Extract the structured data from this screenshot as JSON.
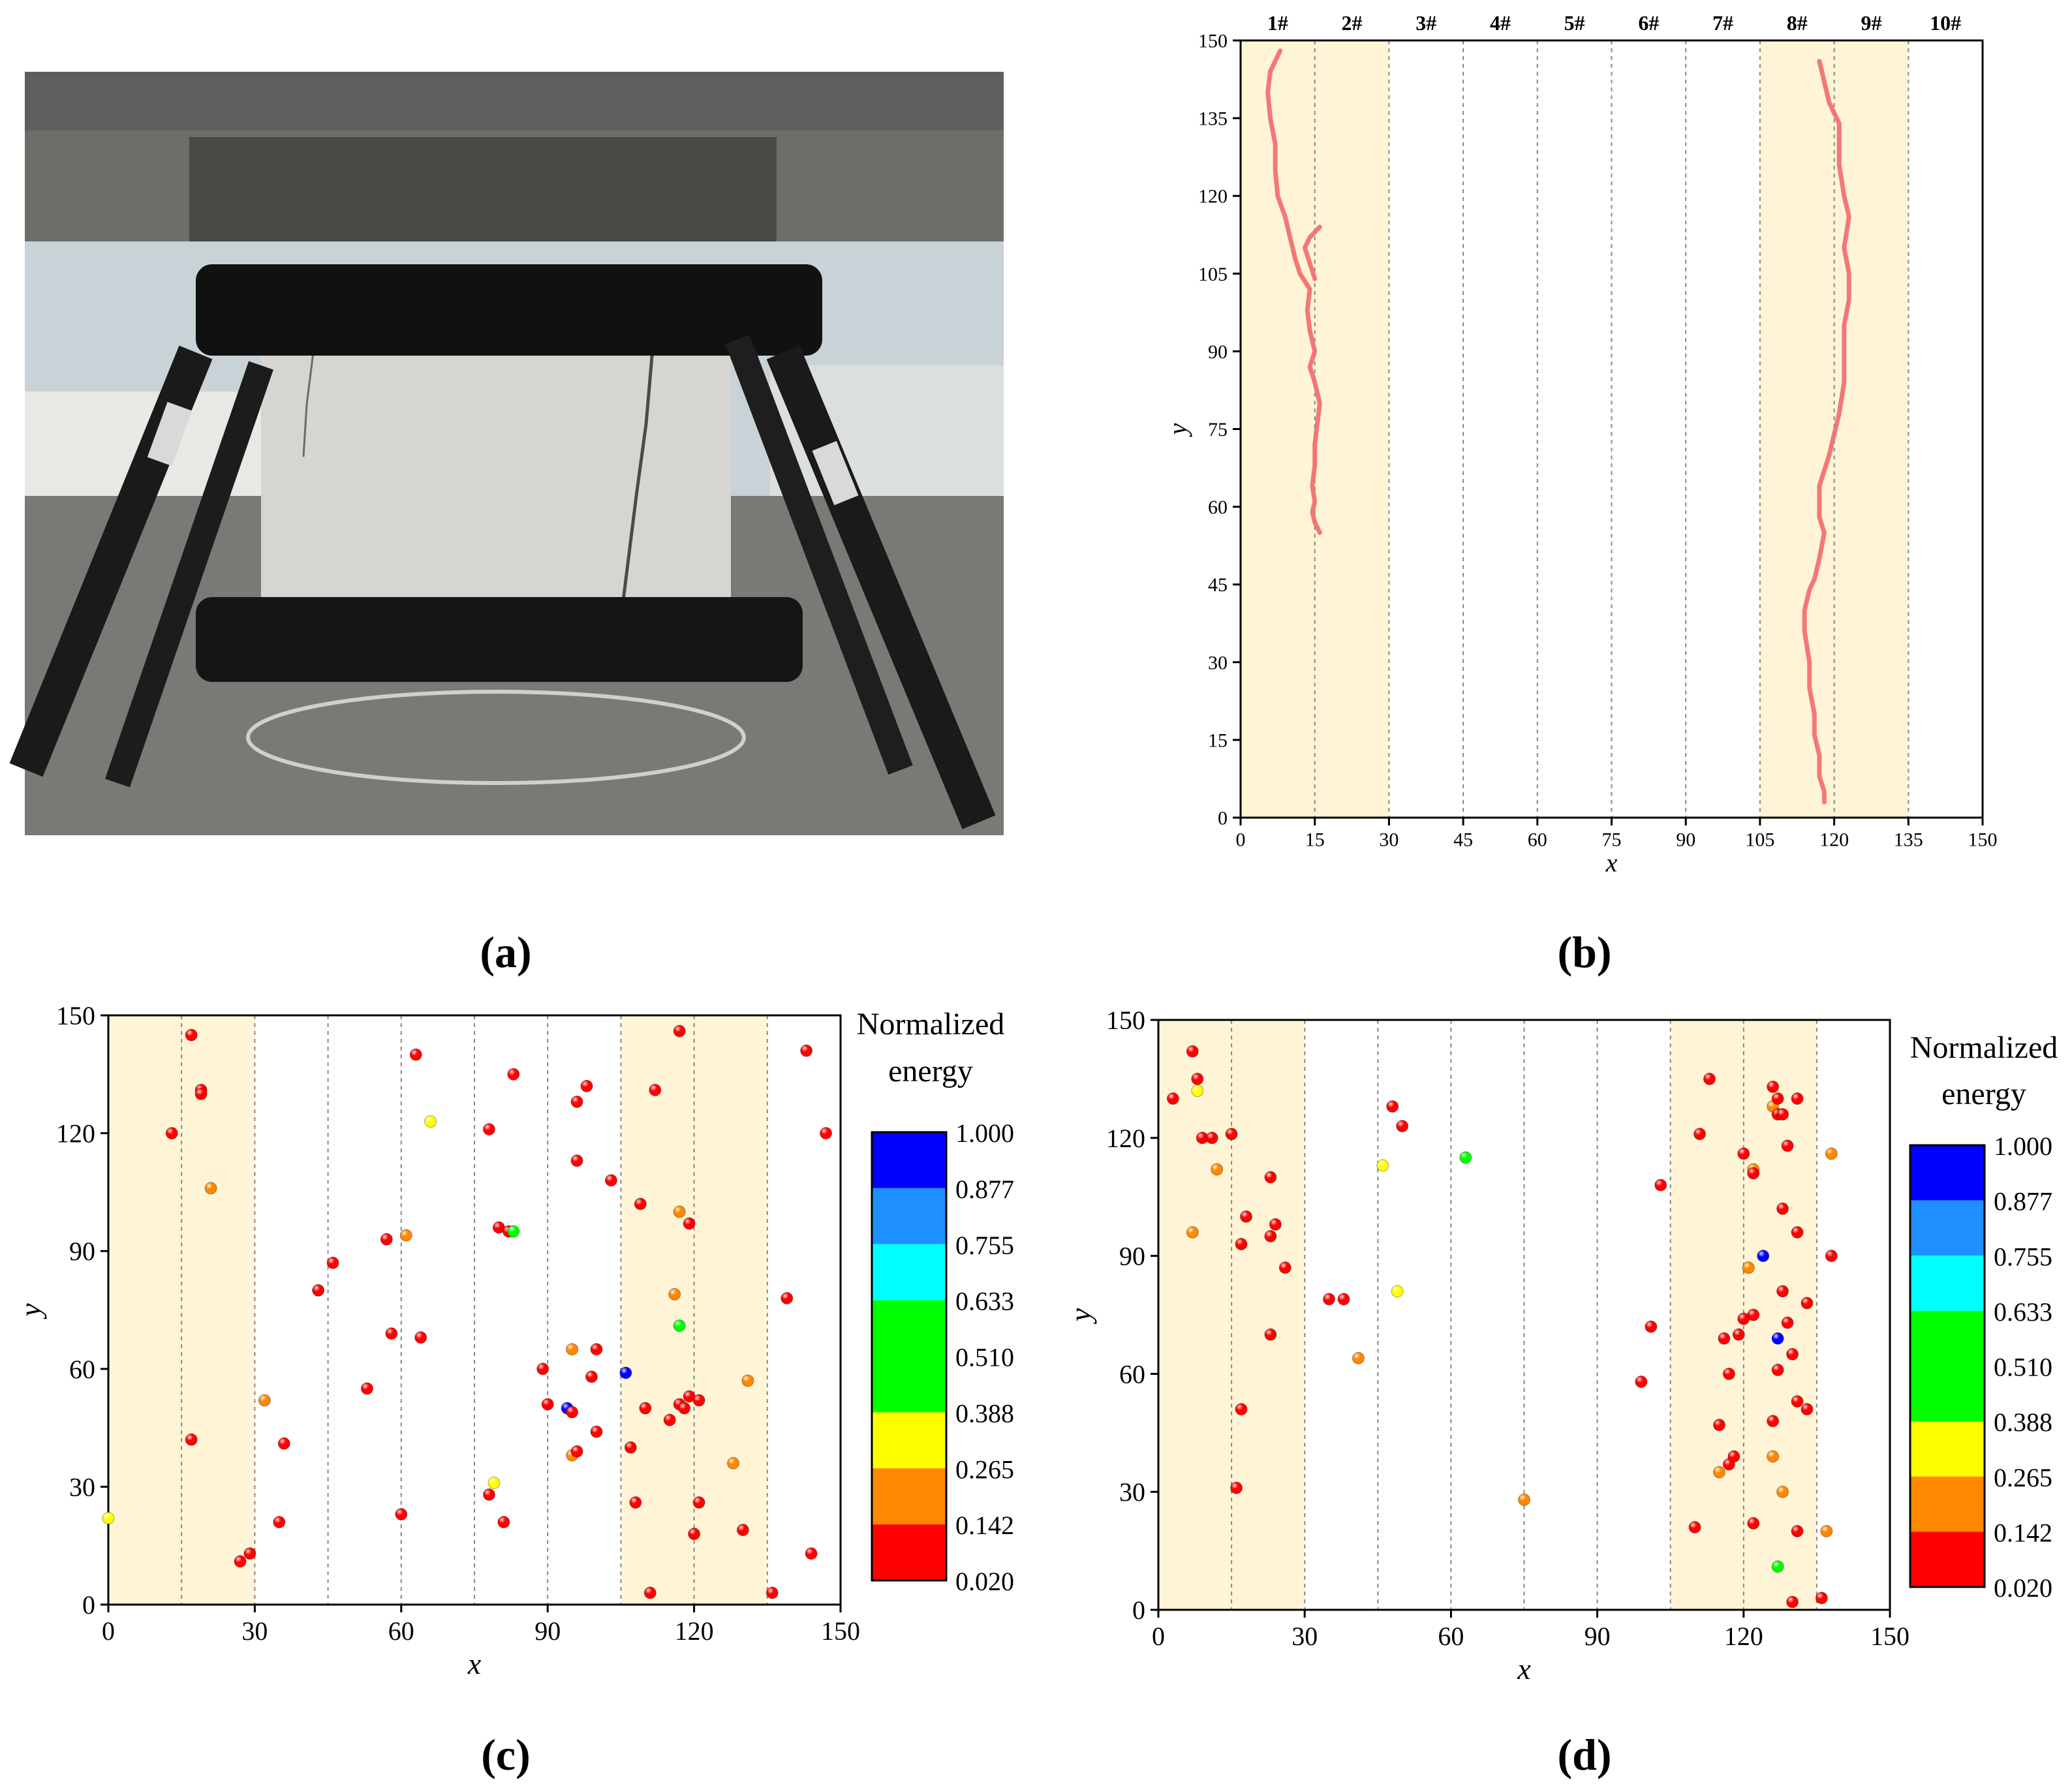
{
  "panels": {
    "a": "(a)",
    "b": "(b)",
    "c": "(c)",
    "d": "(d)"
  },
  "colors": {
    "shade": "#fff5d6",
    "crack": "#f26a6a",
    "frame": "#000000",
    "divider": "#888888"
  },
  "photo": {
    "icon": "photo-concrete-specimen-icon"
  },
  "chart_data": [
    {
      "id": "b",
      "type": "line",
      "xlabel": "x",
      "ylabel": "y",
      "xlim": [
        0,
        150
      ],
      "ylim": [
        0,
        150
      ],
      "xticks": [
        0,
        15,
        30,
        45,
        60,
        75,
        90,
        105,
        120,
        135,
        150
      ],
      "yticks": [
        0,
        15,
        30,
        45,
        60,
        75,
        90,
        105,
        120,
        135,
        150
      ],
      "columns": [
        "1#",
        "2#",
        "3#",
        "4#",
        "5#",
        "6#",
        "7#",
        "8#",
        "9#",
        "10#"
      ],
      "shaded_x_ranges": [
        [
          0,
          30
        ],
        [
          105,
          135
        ]
      ],
      "series": [
        {
          "x": [
            8,
            6,
            5.5,
            6,
            7,
            7,
            7.5,
            9,
            10,
            11,
            12,
            14,
            13.5,
            14,
            15,
            14,
            15,
            16,
            15.5,
            15,
            15,
            14.5,
            15,
            14.5,
            15,
            16
          ],
          "y": [
            148,
            144,
            140,
            135,
            130,
            125,
            120,
            116,
            112,
            108,
            105,
            102,
            98,
            94,
            90,
            87,
            84,
            80,
            76,
            72,
            68,
            64,
            61,
            59,
            57,
            55
          ]
        },
        {
          "x": [
            16,
            14,
            13,
            14,
            15
          ],
          "y": [
            114,
            112,
            110,
            107,
            104
          ]
        },
        {
          "x": [
            117,
            118,
            119,
            121,
            121,
            121,
            122,
            123,
            122,
            123,
            123,
            122,
            122,
            122,
            121,
            119,
            117,
            117,
            118,
            117,
            116,
            115,
            114,
            114,
            115,
            115,
            116,
            116,
            117,
            117,
            118,
            118
          ],
          "y": [
            146,
            142,
            138,
            134,
            130,
            126,
            120,
            116,
            110,
            105,
            100,
            95,
            90,
            84,
            78,
            70,
            64,
            58,
            55,
            50,
            46,
            44,
            40,
            36,
            30,
            25,
            20,
            16,
            12,
            8,
            5,
            3
          ]
        }
      ]
    },
    {
      "id": "c",
      "type": "scatter",
      "xlabel": "x",
      "ylabel": "y",
      "xlim": [
        0,
        150
      ],
      "ylim": [
        0,
        150
      ],
      "xticks": [
        0,
        30,
        60,
        90,
        120,
        150
      ],
      "yticks": [
        0,
        30,
        60,
        90,
        120,
        150
      ],
      "shaded_x_ranges": [
        [
          0,
          30
        ],
        [
          105,
          135
        ]
      ],
      "colorbar": {
        "title_line1": "Normalized",
        "title_line2": "energy",
        "ticks": [
          "1.000",
          "0.877",
          "0.755",
          "0.633",
          "0.510",
          "0.388",
          "0.265",
          "0.142",
          "0.020"
        ],
        "band_colors": [
          "#0000ff",
          "#1e90ff",
          "#00ffff",
          "#00ff00",
          "#ffff00",
          "#ff8800",
          "#ff0000"
        ],
        "band_spans": [
          1,
          1,
          1,
          2,
          1,
          1,
          1
        ]
      },
      "points": [
        [
          17,
          145,
          0.05
        ],
        [
          19,
          131,
          0.05
        ],
        [
          19,
          130,
          0.05
        ],
        [
          13,
          120,
          0.05
        ],
        [
          21,
          106,
          0.2
        ],
        [
          17,
          42,
          0.05
        ],
        [
          27,
          11,
          0.05
        ],
        [
          29,
          13,
          0.05
        ],
        [
          0,
          22,
          0.3
        ],
        [
          32,
          52,
          0.2
        ],
        [
          35,
          21,
          0.05
        ],
        [
          36,
          41,
          0.05
        ],
        [
          43,
          80,
          0.05
        ],
        [
          46,
          87,
          0.05
        ],
        [
          53,
          55,
          0.05
        ],
        [
          57,
          93,
          0.05
        ],
        [
          58,
          69,
          0.05
        ],
        [
          60,
          23,
          0.05
        ],
        [
          61,
          94,
          0.2
        ],
        [
          63,
          140,
          0.05
        ],
        [
          64,
          68,
          0.05
        ],
        [
          66,
          123,
          0.3
        ],
        [
          78,
          121,
          0.05
        ],
        [
          78,
          28,
          0.05
        ],
        [
          79,
          31,
          0.3
        ],
        [
          80,
          96,
          0.05
        ],
        [
          81,
          21,
          0.05
        ],
        [
          82,
          95,
          0.05
        ],
        [
          83,
          95,
          0.55
        ],
        [
          83,
          135,
          0.05
        ],
        [
          89,
          60,
          0.05
        ],
        [
          90,
          51,
          0.05
        ],
        [
          94,
          50,
          0.98
        ],
        [
          95,
          65,
          0.2
        ],
        [
          95,
          38,
          0.2
        ],
        [
          95,
          49,
          0.05
        ],
        [
          96,
          39,
          0.05
        ],
        [
          96,
          128,
          0.05
        ],
        [
          96,
          113,
          0.05
        ],
        [
          98,
          132,
          0.05
        ],
        [
          99,
          58,
          0.05
        ],
        [
          100,
          65,
          0.05
        ],
        [
          100,
          44,
          0.05
        ],
        [
          103,
          108,
          0.05
        ],
        [
          107,
          40,
          0.05
        ],
        [
          108,
          26,
          0.05
        ],
        [
          109,
          102,
          0.05
        ],
        [
          110,
          50,
          0.05
        ],
        [
          111,
          3,
          0.05
        ],
        [
          112,
          131,
          0.05
        ],
        [
          115,
          47,
          0.05
        ],
        [
          116,
          79,
          0.2
        ],
        [
          117,
          100,
          0.2
        ],
        [
          117,
          71,
          0.55
        ],
        [
          117,
          51,
          0.05
        ],
        [
          117,
          146,
          0.05
        ],
        [
          118,
          50,
          0.05
        ],
        [
          119,
          53,
          0.05
        ],
        [
          119,
          97,
          0.05
        ],
        [
          120,
          18,
          0.05
        ],
        [
          121,
          26,
          0.05
        ],
        [
          121,
          52,
          0.05
        ],
        [
          106,
          59,
          0.98
        ],
        [
          128,
          36,
          0.2
        ],
        [
          130,
          19,
          0.05
        ],
        [
          131,
          57,
          0.2
        ],
        [
          136,
          3,
          0.05
        ],
        [
          139,
          78,
          0.05
        ],
        [
          143,
          141,
          0.05
        ],
        [
          144,
          13,
          0.05
        ],
        [
          147,
          120,
          0.05
        ]
      ]
    },
    {
      "id": "d",
      "type": "scatter",
      "xlabel": "x",
      "ylabel": "y",
      "xlim": [
        0,
        150
      ],
      "ylim": [
        0,
        150
      ],
      "xticks": [
        0,
        30,
        60,
        90,
        120,
        150
      ],
      "yticks": [
        0,
        30,
        60,
        90,
        120,
        150
      ],
      "shaded_x_ranges": [
        [
          0,
          30
        ],
        [
          105,
          135
        ]
      ],
      "colorbar": {
        "title_line1": "Normalized",
        "title_line2": "energy",
        "ticks": [
          "1.000",
          "0.877",
          "0.755",
          "0.633",
          "0.510",
          "0.388",
          "0.265",
          "0.142",
          "0.020"
        ],
        "band_colors": [
          "#0000ff",
          "#1e90ff",
          "#00ffff",
          "#00ff00",
          "#ffff00",
          "#ff8800",
          "#ff0000"
        ],
        "band_spans": [
          1,
          1,
          1,
          2,
          1,
          1,
          1
        ]
      },
      "points": [
        [
          3,
          130,
          0.05
        ],
        [
          7,
          142,
          0.05
        ],
        [
          7,
          96,
          0.2
        ],
        [
          8,
          135,
          0.05
        ],
        [
          8,
          132,
          0.3
        ],
        [
          9,
          120,
          0.05
        ],
        [
          11,
          120,
          0.05
        ],
        [
          12,
          112,
          0.2
        ],
        [
          15,
          121,
          0.05
        ],
        [
          16,
          31,
          0.05
        ],
        [
          17,
          93,
          0.05
        ],
        [
          17,
          51,
          0.05
        ],
        [
          18,
          100,
          0.05
        ],
        [
          23,
          110,
          0.05
        ],
        [
          23,
          95,
          0.05
        ],
        [
          23,
          70,
          0.05
        ],
        [
          24,
          98,
          0.05
        ],
        [
          26,
          87,
          0.05
        ],
        [
          35,
          79,
          0.05
        ],
        [
          38,
          79,
          0.05
        ],
        [
          41,
          64,
          0.2
        ],
        [
          46,
          113,
          0.3
        ],
        [
          48,
          128,
          0.05
        ],
        [
          49,
          81,
          0.3
        ],
        [
          50,
          123,
          0.05
        ],
        [
          63,
          115,
          0.55
        ],
        [
          75,
          28,
          0.2
        ],
        [
          99,
          58,
          0.05
        ],
        [
          101,
          72,
          0.05
        ],
        [
          103,
          108,
          0.05
        ],
        [
          110,
          21,
          0.05
        ],
        [
          111,
          121,
          0.05
        ],
        [
          113,
          135,
          0.05
        ],
        [
          115,
          47,
          0.05
        ],
        [
          115,
          35,
          0.2
        ],
        [
          116,
          69,
          0.05
        ],
        [
          117,
          60,
          0.05
        ],
        [
          117,
          37,
          0.05
        ],
        [
          118,
          39,
          0.05
        ],
        [
          119,
          70,
          0.05
        ],
        [
          120,
          74,
          0.05
        ],
        [
          120,
          116,
          0.05
        ],
        [
          121,
          87,
          0.2
        ],
        [
          122,
          112,
          0.2
        ],
        [
          122,
          111,
          0.05
        ],
        [
          122,
          75,
          0.05
        ],
        [
          122,
          22,
          0.05
        ],
        [
          124,
          90,
          0.98
        ],
        [
          126,
          133,
          0.05
        ],
        [
          126,
          128,
          0.2
        ],
        [
          126,
          48,
          0.05
        ],
        [
          126,
          39,
          0.2
        ],
        [
          127,
          130,
          0.05
        ],
        [
          127,
          126,
          0.05
        ],
        [
          127,
          61,
          0.05
        ],
        [
          127,
          69,
          0.98
        ],
        [
          127,
          11,
          0.55
        ],
        [
          128,
          126,
          0.05
        ],
        [
          128,
          102,
          0.05
        ],
        [
          128,
          81,
          0.05
        ],
        [
          128,
          30,
          0.2
        ],
        [
          129,
          118,
          0.05
        ],
        [
          129,
          73,
          0.05
        ],
        [
          130,
          65,
          0.05
        ],
        [
          130,
          2,
          0.05
        ],
        [
          131,
          130,
          0.05
        ],
        [
          131,
          96,
          0.05
        ],
        [
          131,
          53,
          0.05
        ],
        [
          131,
          20,
          0.05
        ],
        [
          133,
          78,
          0.05
        ],
        [
          133,
          51,
          0.05
        ],
        [
          136,
          3,
          0.05
        ],
        [
          137,
          20,
          0.2
        ],
        [
          138,
          116,
          0.2
        ],
        [
          138,
          90,
          0.05
        ]
      ]
    }
  ]
}
